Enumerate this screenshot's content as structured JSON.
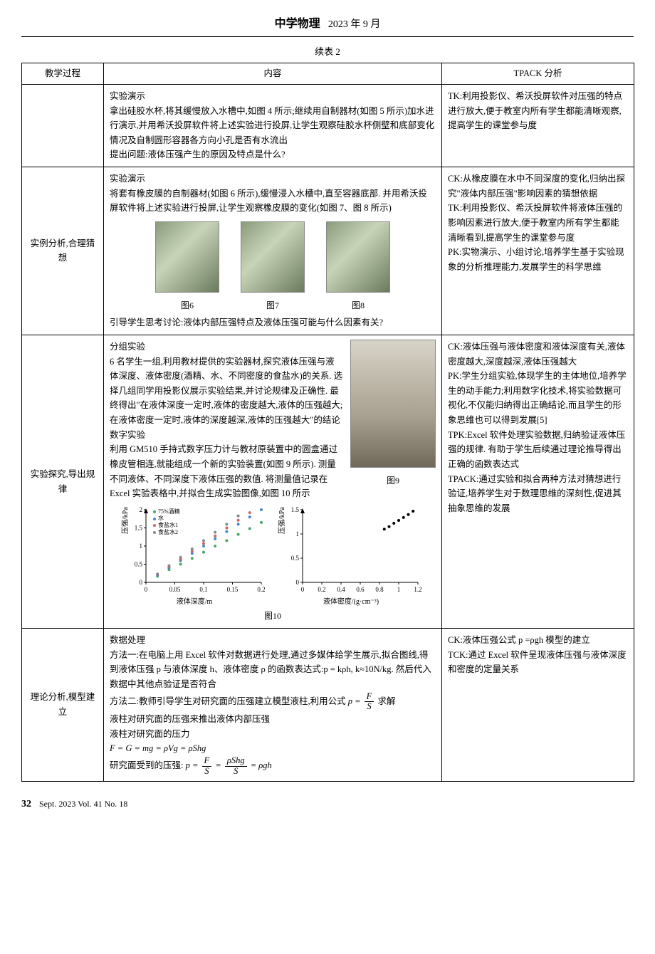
{
  "header": {
    "journal": "中学物理",
    "issue_date": "2023 年 9 月"
  },
  "table_caption": "续表 2",
  "columns": [
    "教学过程",
    "内容",
    "TPACK 分析"
  ],
  "rows": [
    {
      "stage": "",
      "content": "实验演示\n拿出硅胶水杯,将其缓慢放入水槽中,如图 4 所示;继续用自制器材(如图 5 所示)加水进行演示,并用希沃投屏软件将上述实验进行投屏,让学生观察硅胶水杯侧壁和底部变化情况及自制圆形容器各方向小孔是否有水流出\n提出问题:液体压强产生的原因及特点是什么?",
      "tpack": "TK:利用投影仪、希沃投屏软件对压强的特点进行放大,便于教室内所有学生都能清晰观察,提高学生的课堂参与度"
    },
    {
      "stage": "实例分析,合理猜想",
      "content_intro": "实验演示\n将套有橡皮膜的自制器材(如图 6 所示),缓慢浸入水槽中,直至容器底部. 并用希沃投屏软件将上述实验进行投屏,让学生观察橡皮膜的变化(如图 7、图 8 所示)",
      "figs": [
        {
          "label": "图6"
        },
        {
          "label": "图7"
        },
        {
          "label": "图8"
        }
      ],
      "content_outro": "引导学生思考讨论:液体内部压强特点及液体压强可能与什么因素有关?",
      "tpack": "CK:从橡皮膜在水中不同深度的变化,归纳出探究\"液体内部压强\"影响因素的猜想依据\nTK:利用投影仪、希沃投屏软件将液体压强的影响因素进行放大,便于教室内所有学生都能清晰看到,提高学生的课堂参与度\nPK:实物演示、小组讨论,培养学生基于实验现象的分析推理能力,发展学生的科学思维"
    },
    {
      "stage": "实验探究,导出规律",
      "content_p1": "分组实验\n6 名学生一组,利用教材提供的实验器材,探究液体压强与液体深度、液体密度(酒精、水、不同密度的食盐水)的关系. 选择几组同学用投影仪展示实验结果,并讨论规律及正确性. 最终得出\"在液体深度一定时,液体的密度越大,液体的压强越大;在液体密度一定时,液体的深度越深,液体的压强越大\"的结论\n数字实验\n利用 GM510 手持式数字压力计与教材原装置中的圆盒通过橡皮管相连,就能组成一个新的实验装置(如图 9 所示). 测量不同液体、不同深度下液体压强的数值. 将测量值记录在 Excel 实验表格中,并拟合生成实验图像,如图 10 所示",
      "fig9_label": "图9",
      "chart_left": {
        "type": "scatter",
        "xlabel": "液体深度/m",
        "ylabel": "压强/kPa",
        "xlim": [
          0,
          0.2
        ],
        "xticks": [
          0,
          0.05,
          0.1,
          0.15,
          0.2
        ],
        "ylim": [
          0,
          2
        ],
        "yticks": [
          0,
          0.5,
          1,
          1.5,
          2
        ],
        "legend": [
          "75%酒精",
          "水",
          "食盐水1",
          "食盐水2"
        ],
        "series": [
          {
            "name": "75%酒精",
            "color": "#44aa66",
            "points": [
              [
                0.02,
                0.17
              ],
              [
                0.04,
                0.35
              ],
              [
                0.06,
                0.5
              ],
              [
                0.08,
                0.66
              ],
              [
                0.1,
                0.83
              ],
              [
                0.12,
                1.0
              ],
              [
                0.14,
                1.15
              ],
              [
                0.16,
                1.32
              ],
              [
                0.18,
                1.48
              ],
              [
                0.2,
                1.65
              ]
            ]
          },
          {
            "name": "水",
            "color": "#4488cc",
            "points": [
              [
                0.02,
                0.2
              ],
              [
                0.04,
                0.4
              ],
              [
                0.06,
                0.6
              ],
              [
                0.08,
                0.8
              ],
              [
                0.1,
                1.0
              ],
              [
                0.12,
                1.2
              ],
              [
                0.14,
                1.4
              ],
              [
                0.16,
                1.6
              ],
              [
                0.18,
                1.8
              ],
              [
                0.2,
                2.0
              ]
            ]
          },
          {
            "name": "食盐水1",
            "color": "#cc6666",
            "points": [
              [
                0.02,
                0.22
              ],
              [
                0.04,
                0.43
              ],
              [
                0.06,
                0.64
              ],
              [
                0.08,
                0.86
              ],
              [
                0.1,
                1.07
              ],
              [
                0.12,
                1.28
              ],
              [
                0.14,
                1.5
              ],
              [
                0.16,
                1.71
              ],
              [
                0.18,
                1.92
              ]
            ]
          },
          {
            "name": "食盐水2",
            "color": "#888888",
            "points": [
              [
                0.02,
                0.23
              ],
              [
                0.04,
                0.46
              ],
              [
                0.06,
                0.69
              ],
              [
                0.08,
                0.92
              ],
              [
                0.1,
                1.15
              ],
              [
                0.12,
                1.38
              ],
              [
                0.14,
                1.6
              ],
              [
                0.16,
                1.83
              ]
            ]
          }
        ],
        "title_fontsize": 10,
        "label_fontsize": 10,
        "background_color": "#ffffff",
        "axis_color": "#000000"
      },
      "chart_right": {
        "type": "scatter",
        "xlabel": "液体密度/(g·cm⁻³)",
        "ylabel": "压强/kPa",
        "xlim": [
          0,
          1.2
        ],
        "xticks": [
          0,
          0.2,
          0.4,
          0.6,
          0.8,
          1,
          1.2
        ],
        "ylim": [
          0,
          1.5
        ],
        "yticks": [
          0,
          0.5,
          1,
          1.5
        ],
        "series": [
          {
            "color": "#000000",
            "points": [
              [
                0.85,
                1.1
              ],
              [
                0.9,
                1.15
              ],
              [
                0.95,
                1.22
              ],
              [
                1.0,
                1.28
              ],
              [
                1.05,
                1.34
              ],
              [
                1.1,
                1.4
              ],
              [
                1.15,
                1.47
              ]
            ]
          }
        ],
        "title_fontsize": 10,
        "label_fontsize": 10,
        "background_color": "#ffffff",
        "axis_color": "#000000"
      },
      "chart_caption": "图10",
      "tpack": "CK:液体压强与液体密度和液体深度有关,液体密度越大,深度越深,液体压强越大\nPK:学生分组实验,体现学生的主体地位,培养学生的动手能力;利用数字化技术,将实验数据可视化,不仅能归纳得出正确结论,而且学生的形象思维也可以得到发展[5]\nTPK:Excel 软件处理实验数据,归纳验证液体压强的规律. 有助于学生后续通过理论推导得出正确的函数表达式\nTPACK:通过实验和拟合两种方法对猜想进行验证,培养学生对于数理思维的深刻性,促进其抽象思维的发展"
    },
    {
      "stage": "理论分析,模型建立",
      "content_p1": "数据处理\n方法一:在电脑上用 Excel 软件对数据进行处理,通过多媒体给学生展示,拟合图线,得到液体压强 p 与液体深度 h、液体密度 ρ 的函数表达式:p = kρh, k≈10N/kg. 然后代入数据中其他点验证是否符合",
      "method2_prefix": "方法二:教师引导学生对研究面的压强建立模型液柱,利用公式 ",
      "method2_suffix": " 求解",
      "formula_lines": [
        "液柱对研究面的压强来推出液体内部压强",
        "液柱对研究面的压力",
        "F = G = mg = ρVg = ρShg"
      ],
      "formula_final_prefix": "研究面受到的压强:",
      "tpack": "CK:液体压强公式 p =ρgh 模型的建立\nTCK:通过 Excel 软件呈现液体压强与液体深度和密度的定量关系"
    }
  ],
  "footer": {
    "page": "32",
    "line": "Sept. 2023   Vol. 41   No. 18"
  }
}
